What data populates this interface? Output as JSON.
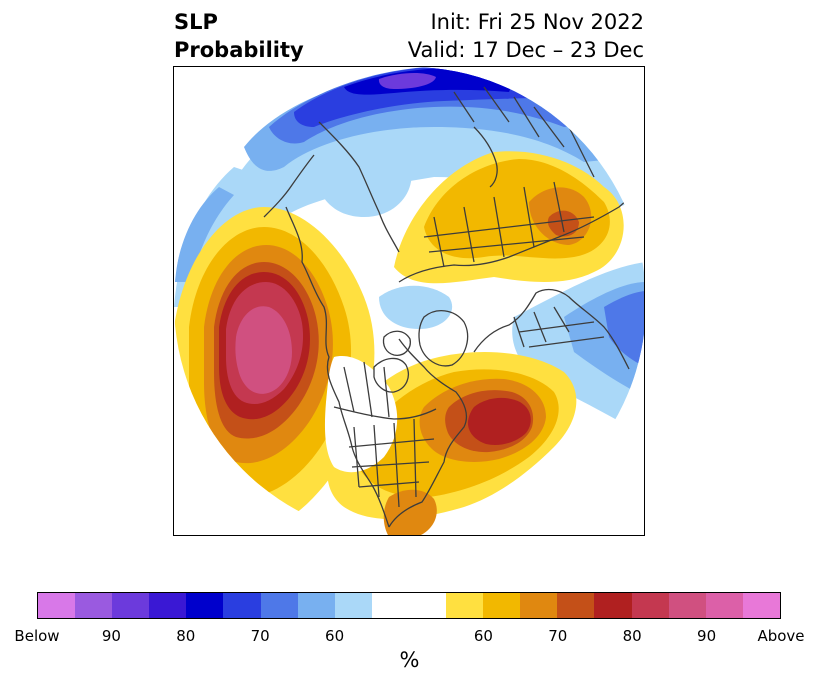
{
  "title": {
    "left_line1": "SLP",
    "left_line2": "Probability",
    "right_line1": "Init: Fri 25 Nov 2022",
    "right_line2": "Valid: 17 Dec – 23 Dec"
  },
  "colorbar": {
    "colors": [
      "#d878e8",
      "#9a5ae0",
      "#6c3adc",
      "#3a18d4",
      "#0000cc",
      "#2a3ee0",
      "#4e78e8",
      "#78b0f0",
      "#aad8f8",
      "#ffffff",
      "#ffffff",
      "#ffe040",
      "#f2b800",
      "#e08810",
      "#c45018",
      "#b02020",
      "#c43850",
      "#d05080",
      "#dc60a8",
      "#e878d8"
    ],
    "tick_labels": [
      "Below",
      "90",
      "80",
      "70",
      "60",
      "60",
      "70",
      "80",
      "90",
      "Above"
    ],
    "unit": "%"
  },
  "map": {
    "projection": "north-polar-stereographic",
    "fill_colors": {
      "blue_light": "#aad8f8",
      "blue_mid": "#78b0f0",
      "blue": "#4e78e8",
      "blue_deep": "#2a3ee0",
      "blue_dark": "#0000cc",
      "blue_violet": "#6c3adc",
      "yellow": "#ffe040",
      "gold": "#f2b800",
      "orange": "#e08810",
      "burnt": "#c45018",
      "red": "#b02020",
      "crimson": "#c43850",
      "pink": "#d05080",
      "magenta": "#dc60a8"
    },
    "border_color": "#3c3c3c"
  }
}
